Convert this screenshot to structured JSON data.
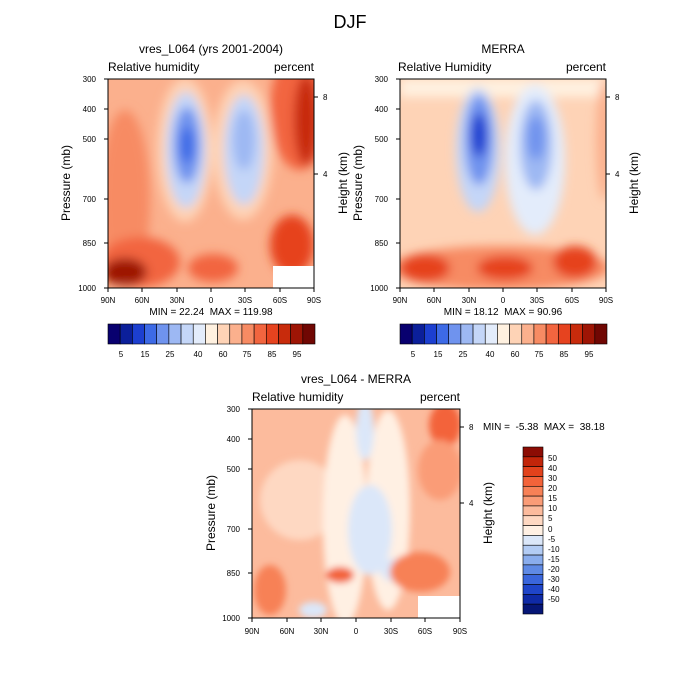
{
  "figure_title": "DJF",
  "chart_data": [
    {
      "type": "heatmap",
      "panel": "model",
      "title": "vres_L064 (yrs 2001-2004)",
      "left_label": "Relative humidity",
      "right_label": "percent",
      "ylabel": "Pressure (mb)",
      "ylabel_right": "Height (km)",
      "x_ticks": [
        "90N",
        "60N",
        "30N",
        "0",
        "30S",
        "60S",
        "90S"
      ],
      "y_ticks": [
        300,
        400,
        500,
        700,
        850,
        1000
      ],
      "y_ticks_right": [
        8,
        4
      ],
      "stats": "MIN = 22.24  MAX = 119.98",
      "colorbar_labels": [
        "5",
        "15",
        "25",
        "40",
        "60",
        "75",
        "85",
        "95"
      ],
      "colorbar_colors": [
        "#08006f",
        "#0b1f9a",
        "#1c3fd0",
        "#3d6ae6",
        "#6f93ee",
        "#9db8f3",
        "#c4d6f8",
        "#e3ecfb",
        "#fff1e0",
        "#fed3b6",
        "#fbb08d",
        "#f78b63",
        "#f2653f",
        "#e6431f",
        "#c82b0c",
        "#9e1505",
        "#700703"
      ],
      "xlim": [
        90,
        -90
      ],
      "ylim": [
        1000,
        300
      ]
    },
    {
      "type": "heatmap",
      "panel": "obs",
      "title": "MERRA",
      "left_label": "Relative Humidity",
      "right_label": "percent",
      "ylabel": "Pressure (mb)",
      "ylabel_right": "Height (km)",
      "x_ticks": [
        "90N",
        "60N",
        "30N",
        "0",
        "30S",
        "60S",
        "90S"
      ],
      "y_ticks": [
        300,
        400,
        500,
        700,
        850,
        1000
      ],
      "y_ticks_right": [
        8,
        4
      ],
      "stats": "MIN = 18.12  MAX = 90.96",
      "colorbar_labels": [
        "5",
        "15",
        "25",
        "40",
        "60",
        "75",
        "85",
        "95"
      ],
      "colorbar_colors": [
        "#08006f",
        "#0b1f9a",
        "#1c3fd0",
        "#3d6ae6",
        "#6f93ee",
        "#9db8f3",
        "#c4d6f8",
        "#e3ecfb",
        "#fff1e0",
        "#fed3b6",
        "#fbb08d",
        "#f78b63",
        "#f2653f",
        "#e6431f",
        "#c82b0c",
        "#9e1505",
        "#700703"
      ],
      "xlim": [
        90,
        -90
      ],
      "ylim": [
        1000,
        300
      ]
    },
    {
      "type": "heatmap",
      "panel": "diff",
      "title": "vres_L064 - MERRA",
      "left_label": "Relative humidity",
      "right_label": "percent",
      "ylabel": "Pressure (mb)",
      "ylabel_right": "Height (km)",
      "x_ticks": [
        "90N",
        "60N",
        "30N",
        "0",
        "30S",
        "60S",
        "90S"
      ],
      "y_ticks": [
        300,
        400,
        500,
        700,
        850,
        1000
      ],
      "y_ticks_right": [
        8,
        4
      ],
      "stats": "MIN =  -5.38  MAX =  38.18",
      "colorbar_labels": [
        "50",
        "40",
        "30",
        "20",
        "15",
        "10",
        "5",
        "0",
        "-5",
        "-10",
        "-15",
        "-20",
        "-30",
        "-40",
        "-50"
      ],
      "colorbar_colors": [
        "#8c0c04",
        "#c2250a",
        "#e2421c",
        "#f3633a",
        "#f78157",
        "#fa9c77",
        "#fcbb9d",
        "#fed8c2",
        "#fff0e3",
        "#dbe7f9",
        "#b3ccf4",
        "#8aaded",
        "#5f8ae5",
        "#3a66dc",
        "#1f45c9",
        "#0f2aa6",
        "#061676"
      ],
      "xlim": [
        90,
        -90
      ],
      "ylim": [
        1000,
        300
      ]
    }
  ]
}
